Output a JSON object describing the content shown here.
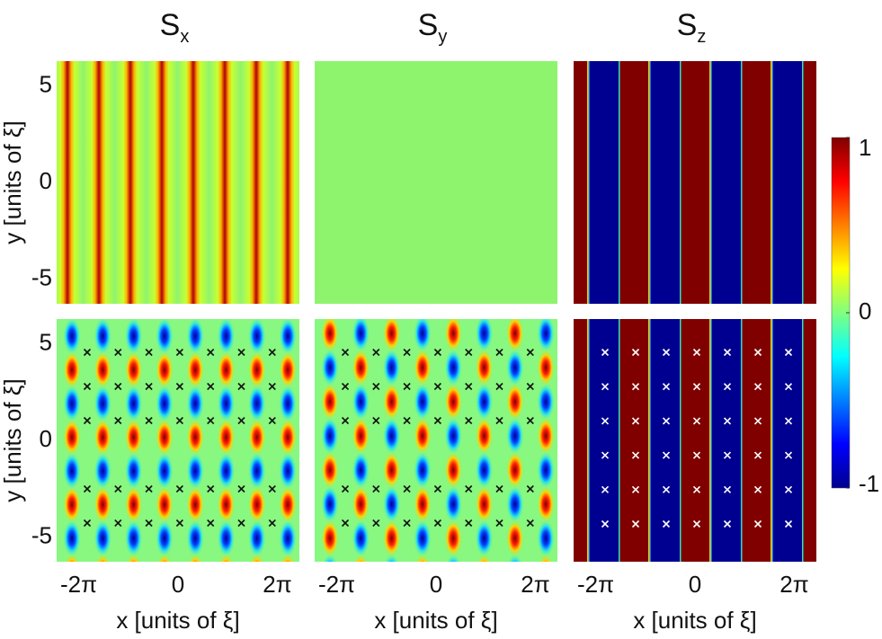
{
  "chart_data": {
    "type": "heatmap",
    "panels": [
      {
        "title": {
          "main": "S",
          "sub": "x"
        }
      },
      {
        "title": {
          "main": "S",
          "sub": "y"
        }
      },
      {
        "title": {
          "main": "S",
          "sub": "z"
        }
      }
    ],
    "xlabel": "x [units of ξ]",
    "ylabel": "y [units of ξ]",
    "xlim": [
      -7.68,
      7.68
    ],
    "xticks": [
      {
        "value": -6.2832,
        "label": "-2π"
      },
      0,
      {
        "value": 6.2832,
        "label": "2π"
      }
    ],
    "ylim": [
      -6.28,
      6.28
    ],
    "yticks": [
      5,
      0,
      -5
    ],
    "colorbar": {
      "lim": [
        -1,
        1
      ],
      "ticks": [
        1,
        0,
        -1
      ]
    }
  }
}
